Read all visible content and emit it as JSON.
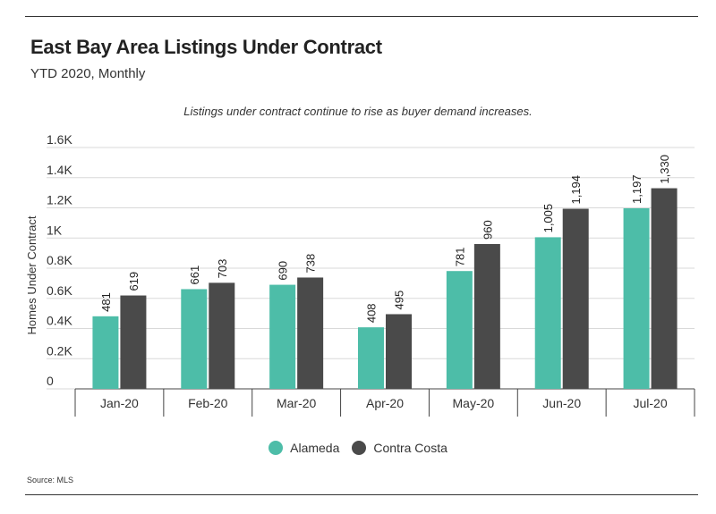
{
  "title": "East Bay Area Listings Under Contract",
  "subtitle": "YTD 2020, Monthly",
  "annotation": "Listings under contract continue to rise as buyer demand increases.",
  "source": "Source: MLS",
  "colors": {
    "alameda": "#4dbda8",
    "contra_costa": "#4a4a4a",
    "grid": "#d9d9d9",
    "axis": "#444444"
  },
  "chart_data": {
    "type": "bar",
    "categories": [
      "Jan-20",
      "Feb-20",
      "Mar-20",
      "Apr-20",
      "May-20",
      "Jun-20",
      "Jul-20"
    ],
    "series": [
      {
        "name": "Alameda",
        "values": [
          481,
          661,
          690,
          408,
          781,
          1005,
          1197
        ],
        "labels": [
          "481",
          "661",
          "690",
          "408",
          "781",
          "1,005",
          "1,197"
        ]
      },
      {
        "name": "Contra Costa",
        "values": [
          619,
          703,
          738,
          495,
          960,
          1194,
          1330
        ],
        "labels": [
          "619",
          "703",
          "738",
          "495",
          "960",
          "1,194",
          "1,330"
        ]
      }
    ],
    "ylabel": "Homes Under Contract",
    "ylim": [
      0,
      1600
    ],
    "yticks": [
      0,
      200,
      400,
      600,
      800,
      1000,
      1200,
      1400,
      1600
    ],
    "ytick_labels": [
      "0",
      "0.2K",
      "0.4K",
      "0.6K",
      "0.8K",
      "1K",
      "1.2K",
      "1.4K",
      "1.6K"
    ],
    "grid": true,
    "legend": "bottom-center"
  }
}
